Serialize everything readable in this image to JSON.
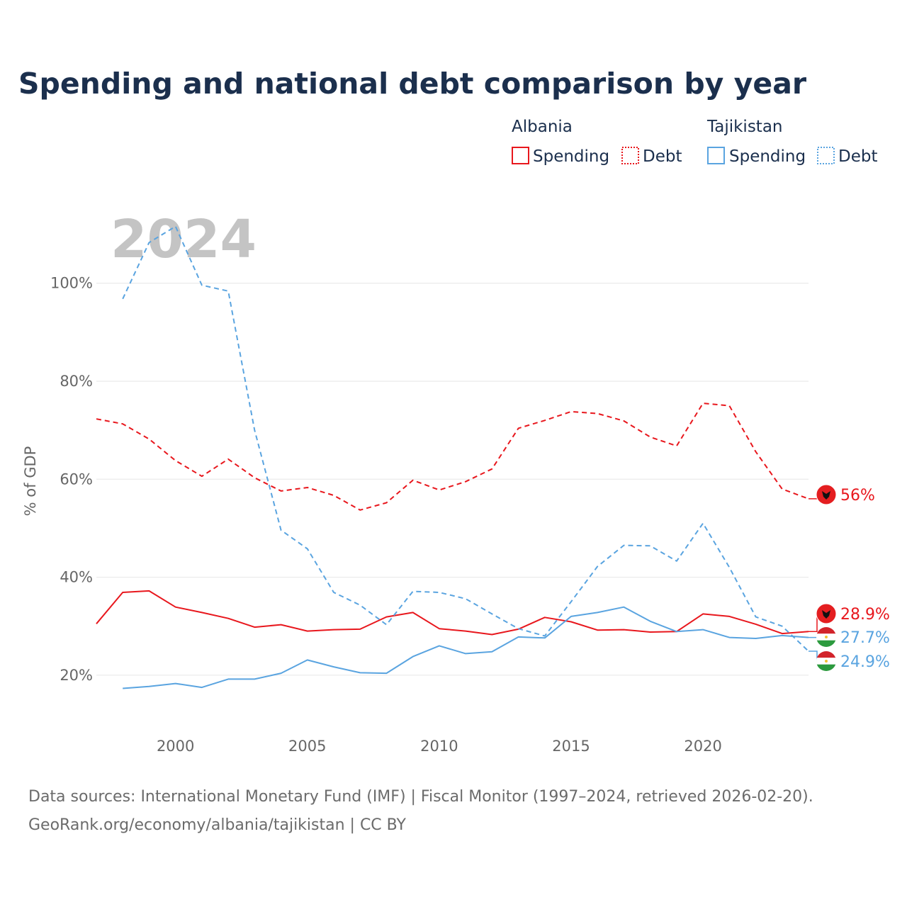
{
  "title": "Spending and national debt comparison by year",
  "big_year": "2024",
  "legend": {
    "groups": [
      {
        "country": "Albania",
        "color": "#e8171d",
        "items": [
          {
            "label": "Spending",
            "style": "solid"
          },
          {
            "label": "Debt",
            "style": "dotted"
          }
        ]
      },
      {
        "country": "Tajikistan",
        "color": "#5aa4e0",
        "items": [
          {
            "label": "Spending",
            "style": "solid"
          },
          {
            "label": "Debt",
            "style": "dotted"
          }
        ]
      }
    ]
  },
  "source": {
    "line1": "Data sources: International Monetary Fund (IMF) | Fiscal Monitor (1997–2024, retrieved 2026-02-20).",
    "line2": "GeoRank.org/economy/albania/tajikistan | CC BY"
  },
  "chart_data": {
    "type": "line",
    "title": "Spending and national debt comparison by year",
    "xlabel": "",
    "ylabel": "% of GDP",
    "xlim": [
      1997,
      2024
    ],
    "ylim": [
      10,
      115
    ],
    "x_ticks": [
      2000,
      2005,
      2010,
      2015,
      2020
    ],
    "y_ticks": [
      20,
      40,
      60,
      80,
      100
    ],
    "y_tick_labels": [
      "20%",
      "40%",
      "60%",
      "80%",
      "100%"
    ],
    "grid": true,
    "series": [
      {
        "name": "Albania Debt",
        "country": "Albania",
        "metric": "Debt",
        "color": "#e8171d",
        "dash": "dashed",
        "end_label": "56%",
        "x": [
          1997,
          1998,
          1999,
          2000,
          2001,
          2002,
          2003,
          2004,
          2005,
          2006,
          2007,
          2008,
          2009,
          2010,
          2011,
          2012,
          2013,
          2014,
          2015,
          2016,
          2017,
          2018,
          2019,
          2020,
          2021,
          2022,
          2023,
          2024
        ],
        "values": [
          72.3,
          71.3,
          68.2,
          63.8,
          60.6,
          64.1,
          60.3,
          57.6,
          58.3,
          56.7,
          53.7,
          55.2,
          59.8,
          57.8,
          59.5,
          62.1,
          70.4,
          72.0,
          73.8,
          73.4,
          71.9,
          68.6,
          66.8,
          75.5,
          75.0,
          65.6,
          58.0,
          56.0
        ]
      },
      {
        "name": "Albania Spending",
        "country": "Albania",
        "metric": "Spending",
        "color": "#e8171d",
        "dash": "solid",
        "end_label": "28.9%",
        "x": [
          1997,
          1998,
          1999,
          2000,
          2001,
          2002,
          2003,
          2004,
          2005,
          2006,
          2007,
          2008,
          2009,
          2010,
          2011,
          2012,
          2013,
          2014,
          2015,
          2016,
          2017,
          2018,
          2019,
          2020,
          2021,
          2022,
          2023,
          2024
        ],
        "values": [
          30.5,
          36.9,
          37.2,
          33.9,
          32.8,
          31.6,
          29.8,
          30.3,
          29.0,
          29.3,
          29.4,
          31.9,
          32.8,
          29.5,
          29.0,
          28.3,
          29.4,
          31.8,
          30.9,
          29.2,
          29.3,
          28.8,
          28.9,
          32.5,
          32.0,
          30.4,
          28.5,
          28.9
        ]
      },
      {
        "name": "Tajikistan Debt",
        "country": "Tajikistan",
        "metric": "Debt",
        "color": "#5aa4e0",
        "dash": "dashed",
        "end_label": "24.9%",
        "x": [
          1998,
          1999,
          2000,
          2001,
          2002,
          2003,
          2004,
          2005,
          2006,
          2007,
          2008,
          2009,
          2010,
          2011,
          2012,
          2013,
          2014,
          2015,
          2016,
          2017,
          2018,
          2019,
          2020,
          2021,
          2022,
          2023,
          2024
        ],
        "values": [
          96.8,
          108.3,
          111.6,
          99.6,
          98.4,
          70.0,
          49.6,
          45.8,
          36.9,
          34.3,
          30.3,
          37.1,
          36.9,
          35.6,
          32.5,
          29.5,
          28.0,
          35.0,
          42.2,
          46.5,
          46.4,
          43.3,
          51.0,
          42.0,
          31.9,
          30.0,
          24.9
        ]
      },
      {
        "name": "Tajikistan Spending",
        "country": "Tajikistan",
        "metric": "Spending",
        "color": "#5aa4e0",
        "dash": "solid",
        "end_label": "27.7%",
        "x": [
          1998,
          1999,
          2000,
          2001,
          2002,
          2003,
          2004,
          2005,
          2006,
          2007,
          2008,
          2009,
          2010,
          2011,
          2012,
          2013,
          2014,
          2015,
          2016,
          2017,
          2018,
          2019,
          2020,
          2021,
          2022,
          2023,
          2024
        ],
        "values": [
          17.3,
          17.7,
          18.3,
          17.5,
          19.2,
          19.2,
          20.4,
          23.1,
          21.7,
          20.5,
          20.4,
          23.8,
          26.0,
          24.4,
          24.8,
          27.8,
          27.6,
          32.0,
          32.8,
          33.9,
          31.0,
          28.9,
          29.3,
          27.7,
          27.5,
          28.1,
          27.7
        ]
      }
    ]
  }
}
